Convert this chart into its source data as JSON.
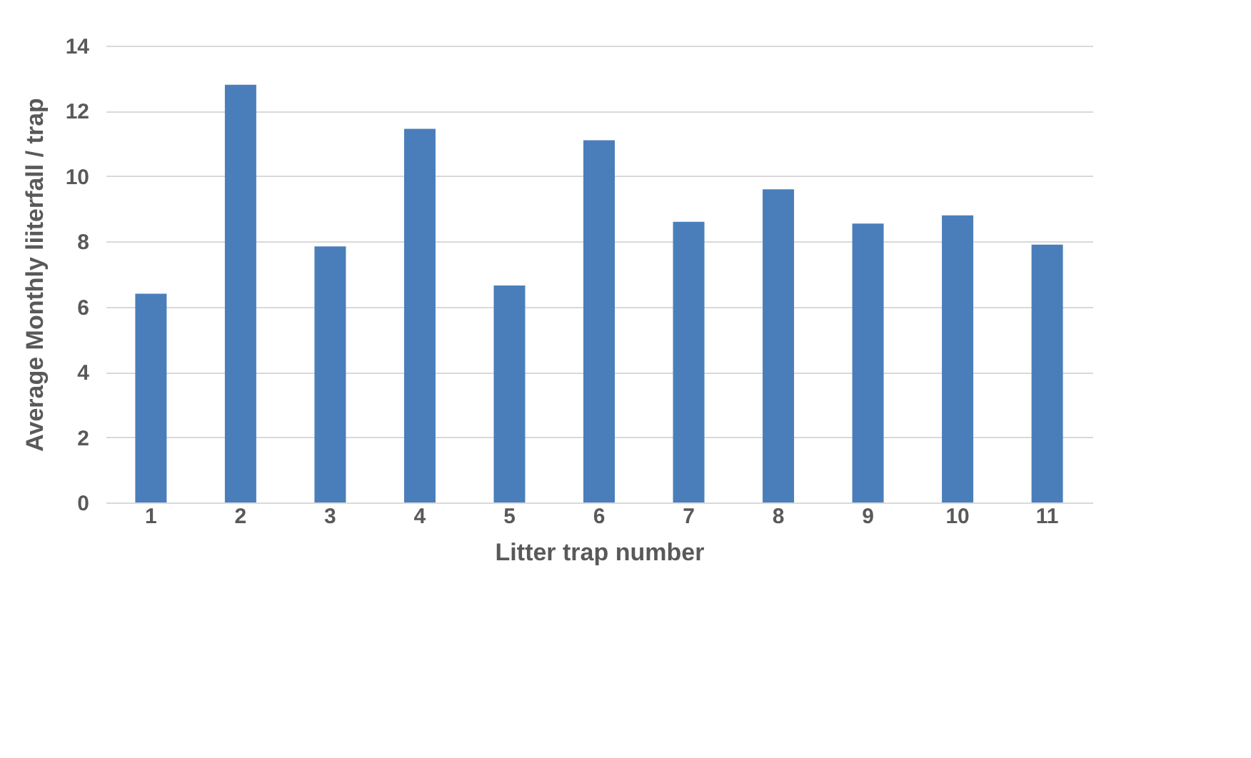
{
  "chart_data": {
    "type": "bar",
    "xlabel": "Litter trap number",
    "ylabel": "Average Monthly liiterfall / trap",
    "categories": [
      "1",
      "2",
      "3",
      "4",
      "5",
      "6",
      "7",
      "8",
      "9",
      "10",
      "11"
    ],
    "values": [
      6.4,
      12.8,
      7.85,
      11.45,
      6.65,
      11.1,
      8.6,
      9.6,
      8.55,
      8.8,
      7.9
    ],
    "color": "#4a7ebb",
    "ylim": [
      0,
      14
    ],
    "yticks": [
      0,
      2,
      4,
      6,
      8,
      10,
      12,
      14
    ],
    "grid": "y"
  }
}
